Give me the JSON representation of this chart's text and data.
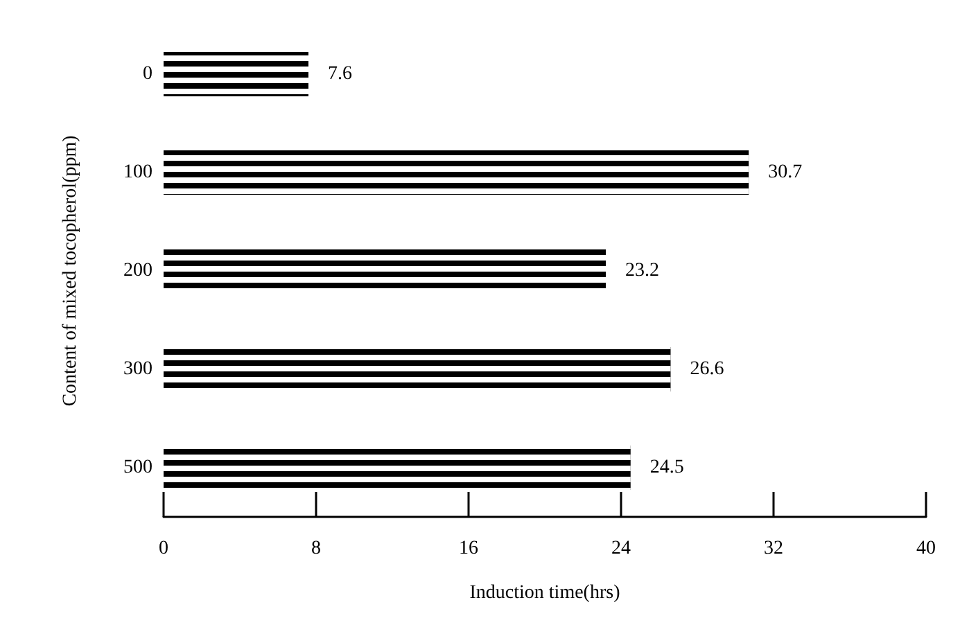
{
  "chart_data": {
    "type": "bar",
    "orientation": "horizontal",
    "xlabel": "Induction time(hrs)",
    "ylabel": "Content of mixed tocopherol(ppm)",
    "categories": [
      "0",
      "100",
      "200",
      "300",
      "500"
    ],
    "values": [
      7.6,
      30.7,
      23.2,
      26.6,
      24.5
    ],
    "color": "#000000",
    "xlim": [
      0,
      40
    ],
    "xticks": [
      0,
      8,
      16,
      24,
      32,
      40
    ],
    "grid": false,
    "data_labels": true
  }
}
